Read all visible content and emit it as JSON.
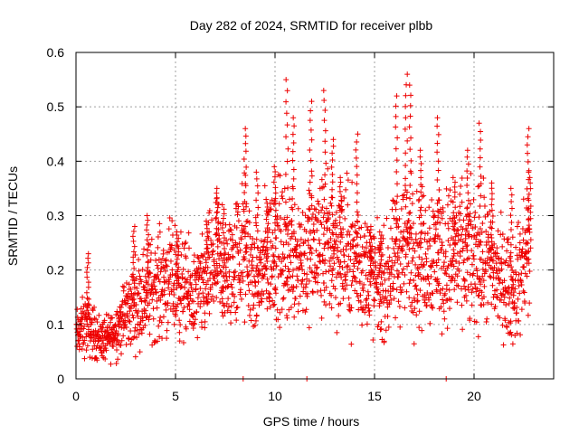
{
  "chart_data": {
    "type": "scatter",
    "title": "Day 282 of 2024, SRMTID for receiver plbb",
    "xlabel": "GPS time / hours",
    "ylabel": "SRMTID / TECUs",
    "xlim": [
      0,
      24
    ],
    "ylim": [
      0,
      0.6
    ],
    "xticks": [
      0,
      5,
      10,
      15,
      20
    ],
    "xtick_labels": [
      "0",
      "5",
      "10",
      "15",
      "20"
    ],
    "yticks": [
      0,
      0.1,
      0.2,
      0.3,
      0.4,
      0.5,
      0.6
    ],
    "ytick_labels": [
      "0",
      "0.1",
      "0.2",
      "0.3",
      "0.4",
      "0.5",
      "0.6"
    ],
    "grid": true,
    "marker": "+",
    "colors": {
      "points": "#ee0000",
      "axes": "#000000",
      "grid": "#a0a0a0"
    },
    "series": [
      {
        "name": "SRMTID",
        "trend": [
          [
            0.0,
            0.08
          ],
          [
            0.5,
            0.1
          ],
          [
            1.0,
            0.08
          ],
          [
            1.5,
            0.07
          ],
          [
            2.0,
            0.09
          ],
          [
            2.5,
            0.12
          ],
          [
            3.0,
            0.14
          ],
          [
            3.5,
            0.16
          ],
          [
            4.0,
            0.17
          ],
          [
            4.5,
            0.18
          ],
          [
            5.0,
            0.18
          ],
          [
            5.5,
            0.16
          ],
          [
            6.0,
            0.15
          ],
          [
            6.5,
            0.17
          ],
          [
            7.0,
            0.22
          ],
          [
            7.5,
            0.18
          ],
          [
            8.0,
            0.22
          ],
          [
            8.5,
            0.24
          ],
          [
            9.0,
            0.17
          ],
          [
            9.5,
            0.21
          ],
          [
            10.0,
            0.24
          ],
          [
            10.5,
            0.22
          ],
          [
            11.0,
            0.24
          ],
          [
            11.5,
            0.22
          ],
          [
            12.0,
            0.24
          ],
          [
            12.5,
            0.24
          ],
          [
            13.0,
            0.24
          ],
          [
            13.5,
            0.23
          ],
          [
            14.0,
            0.22
          ],
          [
            14.5,
            0.2
          ],
          [
            15.0,
            0.18
          ],
          [
            15.5,
            0.17
          ],
          [
            16.0,
            0.21
          ],
          [
            16.5,
            0.25
          ],
          [
            17.0,
            0.23
          ],
          [
            17.5,
            0.22
          ],
          [
            18.0,
            0.24
          ],
          [
            18.5,
            0.22
          ],
          [
            19.0,
            0.23
          ],
          [
            19.5,
            0.22
          ],
          [
            20.0,
            0.22
          ],
          [
            20.5,
            0.22
          ],
          [
            21.0,
            0.2
          ],
          [
            21.5,
            0.18
          ],
          [
            22.0,
            0.15
          ],
          [
            22.5,
            0.22
          ],
          [
            22.8,
            0.22
          ]
        ],
        "peaks": [
          [
            0.6,
            0.23
          ],
          [
            2.9,
            0.28
          ],
          [
            3.6,
            0.3
          ],
          [
            5.1,
            0.27
          ],
          [
            6.6,
            0.29
          ],
          [
            7.1,
            0.35
          ],
          [
            7.4,
            0.32
          ],
          [
            8.5,
            0.46
          ],
          [
            9.1,
            0.38
          ],
          [
            9.6,
            0.33
          ],
          [
            10.0,
            0.39
          ],
          [
            10.6,
            0.55
          ],
          [
            10.9,
            0.48
          ],
          [
            11.8,
            0.51
          ],
          [
            12.5,
            0.53
          ],
          [
            12.9,
            0.44
          ],
          [
            13.3,
            0.37
          ],
          [
            14.1,
            0.45
          ],
          [
            14.8,
            0.28
          ],
          [
            15.3,
            0.27
          ],
          [
            16.1,
            0.52
          ],
          [
            16.6,
            0.56
          ],
          [
            16.8,
            0.54
          ],
          [
            17.3,
            0.42
          ],
          [
            18.2,
            0.48
          ],
          [
            19.0,
            0.37
          ],
          [
            19.7,
            0.42
          ],
          [
            20.3,
            0.47
          ],
          [
            20.9,
            0.36
          ],
          [
            21.9,
            0.35
          ],
          [
            22.7,
            0.46
          ],
          [
            22.8,
            0.38
          ]
        ],
        "zeros": [
          8.4,
          11.6,
          18.6
        ]
      }
    ]
  }
}
